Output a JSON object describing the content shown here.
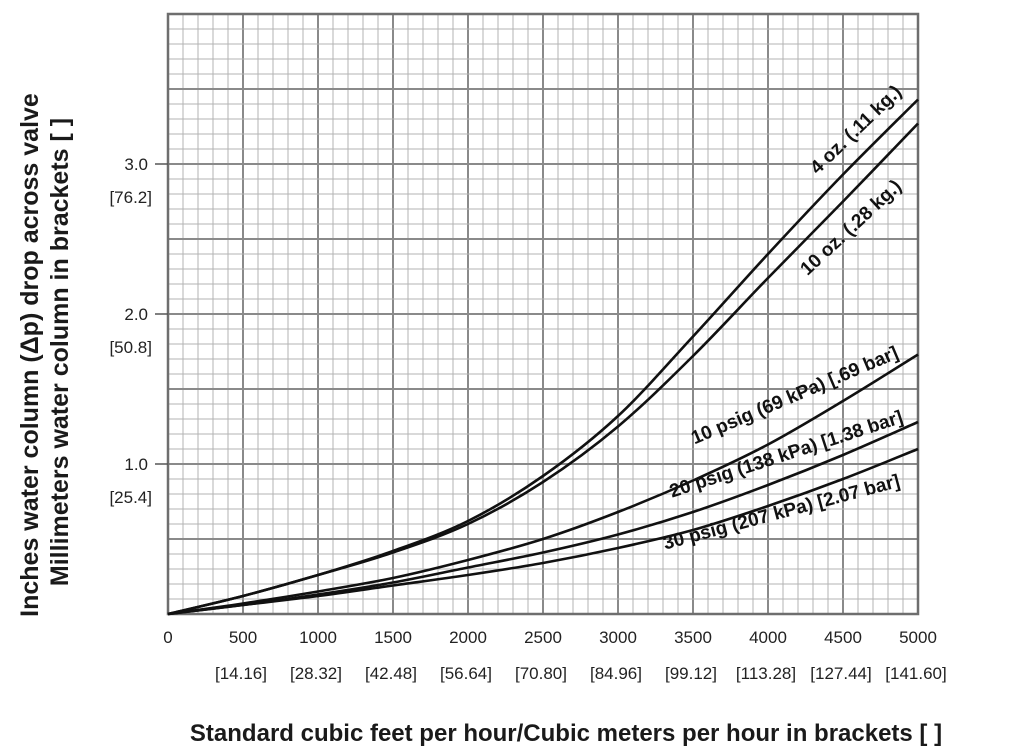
{
  "chart_data": {
    "type": "line",
    "title": "",
    "xlabel": "Standard cubic feet per hour/Cubic meters per hour in brackets [ ]",
    "ylabel_line1": "Inches water column (Δp) drop across valve",
    "ylabel_line2": "Millimeters water column in brackets [ ]",
    "xlim": [
      0,
      5000
    ],
    "ylim": [
      0,
      3.0
    ],
    "grid": true,
    "x_ticks": [
      "0",
      "500",
      "1000",
      "1500",
      "2000",
      "2500",
      "3000",
      "3500",
      "4000",
      "4500",
      "5000"
    ],
    "x_ticks_secondary": [
      "[14.16]",
      "[28.32]",
      "[42.48]",
      "[56.64]",
      "[70.80]",
      "[84.96]",
      "[99.12]",
      "[113.28]",
      "[127.44]",
      "[141.60]"
    ],
    "y_ticks": [
      {
        "value": 1.0,
        "label": "1.0",
        "secondary": "[25.4]"
      },
      {
        "value": 2.0,
        "label": "2.0",
        "secondary": "[50.8]"
      },
      {
        "value": 3.0,
        "label": "3.0",
        "secondary": "[76.2]"
      }
    ],
    "series": [
      {
        "name": "4 oz. (.11 kg.)",
        "x": [
          0,
          500,
          1000,
          1500,
          2000,
          2500,
          3000,
          3500,
          4000,
          4500,
          5000
        ],
        "y": [
          0,
          0.12,
          0.26,
          0.42,
          0.62,
          0.92,
          1.32,
          1.85,
          2.4,
          2.93,
          3.43
        ]
      },
      {
        "name": "10 oz. (.28 kg.)",
        "x": [
          0,
          500,
          1000,
          1500,
          2000,
          2500,
          3000,
          3500,
          4000,
          4500,
          5000
        ],
        "y": [
          0,
          0.12,
          0.26,
          0.41,
          0.6,
          0.88,
          1.25,
          1.72,
          2.24,
          2.75,
          3.27
        ]
      },
      {
        "name": "10 psig (69 kPa) [.69 bar]",
        "x": [
          0,
          500,
          1000,
          1500,
          2000,
          2500,
          3000,
          3500,
          4000,
          4500,
          5000
        ],
        "y": [
          0,
          0.07,
          0.15,
          0.24,
          0.36,
          0.5,
          0.68,
          0.89,
          1.13,
          1.42,
          1.73
        ]
      },
      {
        "name": "20 psig (138 kPa) [1.38 bar]",
        "x": [
          0,
          500,
          1000,
          1500,
          2000,
          2500,
          3000,
          3500,
          4000,
          4500,
          5000
        ],
        "y": [
          0,
          0.06,
          0.13,
          0.21,
          0.31,
          0.41,
          0.53,
          0.68,
          0.86,
          1.06,
          1.28
        ]
      },
      {
        "name": "30 psig (207 kPa) [2.07 bar]",
        "x": [
          0,
          500,
          1000,
          1500,
          2000,
          2500,
          3000,
          3500,
          4000,
          4500,
          5000
        ],
        "y": [
          0,
          0.06,
          0.12,
          0.19,
          0.26,
          0.34,
          0.44,
          0.56,
          0.72,
          0.9,
          1.1
        ]
      }
    ]
  }
}
